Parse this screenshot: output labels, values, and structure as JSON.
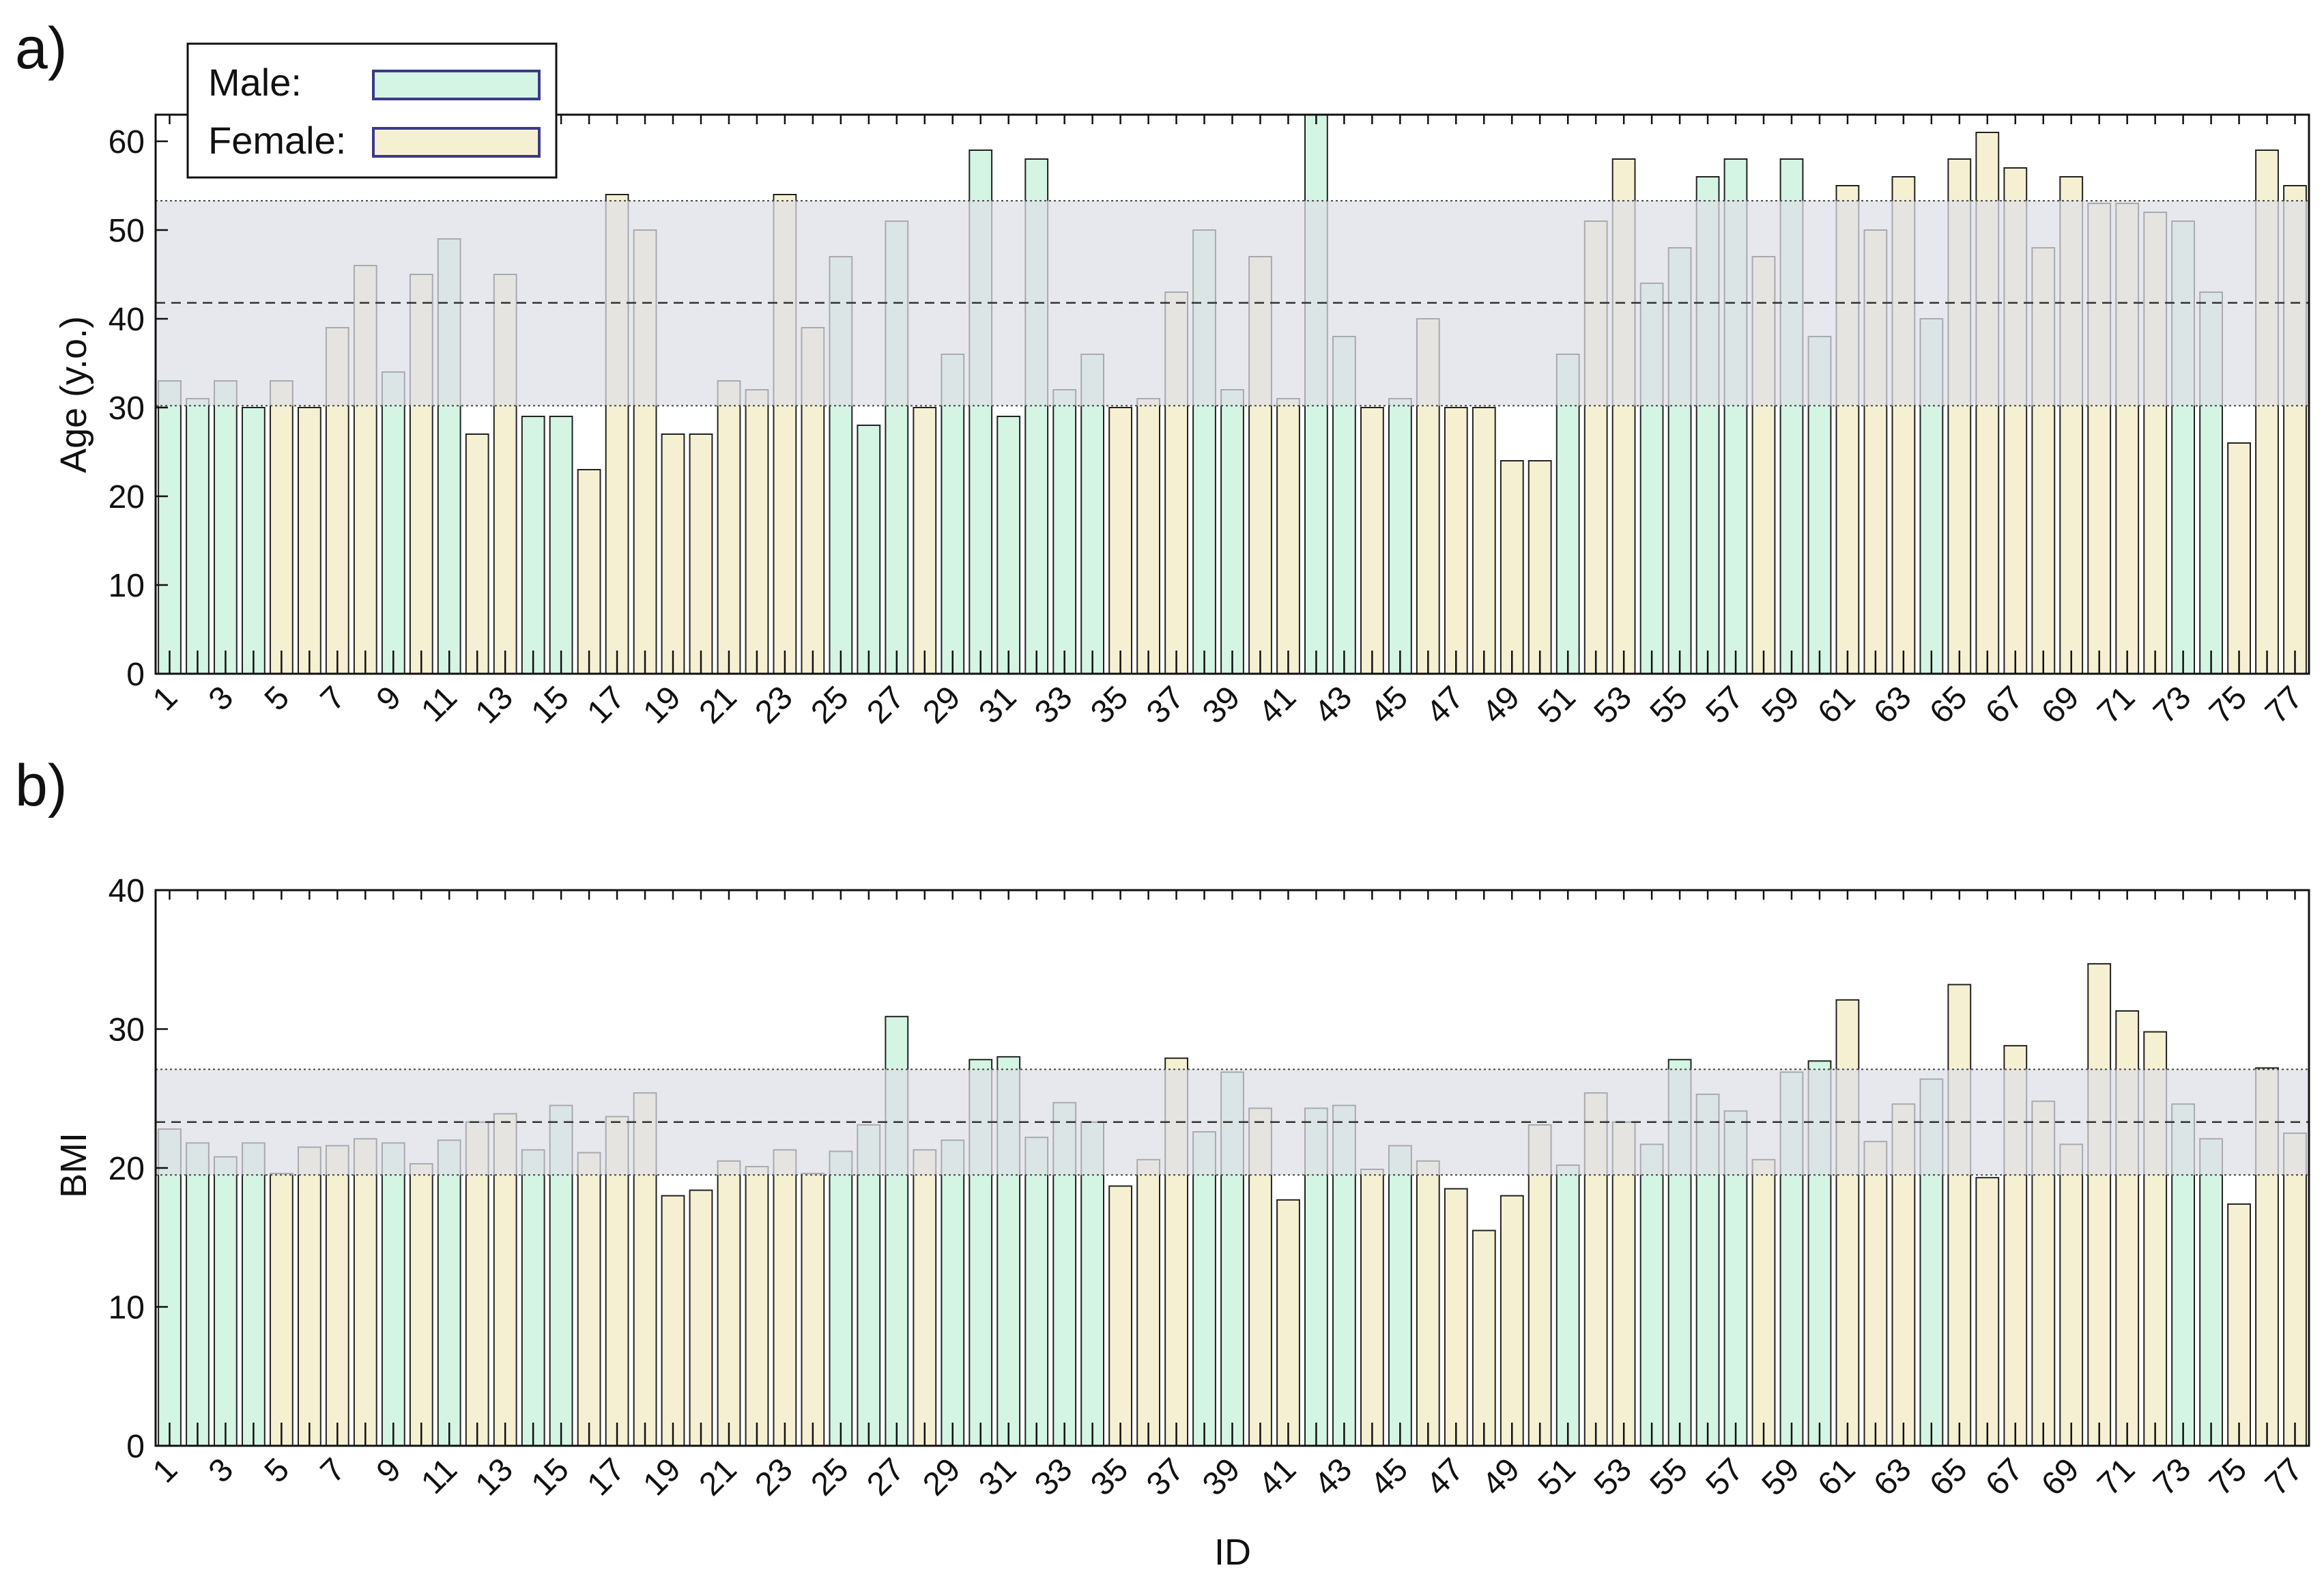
{
  "colors": {
    "male": "#d4f5e4",
    "female": "#f6f0d2",
    "band": "#dedfe6",
    "bar_stroke": "#222222",
    "legend_stroke": "#3a3a8c"
  },
  "legend": {
    "male_label": "Male:",
    "female_label": "Female:"
  },
  "chart_data": [
    {
      "panel": "a)",
      "type": "bar",
      "ylabel": "Age (y.o.)",
      "xlabel": "",
      "ylim": [
        0,
        63
      ],
      "yticks": [
        0,
        10,
        20,
        30,
        40,
        50,
        60
      ],
      "xtick_labels": [
        "1",
        "3",
        "5",
        "7",
        "9",
        "11",
        "13",
        "15",
        "17",
        "19",
        "21",
        "23",
        "25",
        "27",
        "29",
        "31",
        "33",
        "35",
        "37",
        "39",
        "41",
        "43",
        "45",
        "47",
        "49",
        "51",
        "53",
        "55",
        "57",
        "59",
        "61",
        "63",
        "65",
        "67",
        "69",
        "71",
        "73",
        "75",
        "77"
      ],
      "mean": 41.8,
      "band": [
        30.2,
        53.3
      ],
      "ids": [
        1,
        2,
        3,
        4,
        5,
        6,
        7,
        8,
        9,
        10,
        11,
        12,
        13,
        14,
        15,
        16,
        17,
        18,
        19,
        20,
        21,
        22,
        23,
        24,
        25,
        26,
        27,
        28,
        29,
        30,
        31,
        32,
        33,
        34,
        35,
        36,
        37,
        38,
        39,
        40,
        41,
        42,
        43,
        44,
        45,
        46,
        47,
        48,
        49,
        50,
        51,
        52,
        53,
        54,
        55,
        56,
        57,
        58,
        59,
        60,
        61,
        62,
        63,
        64,
        65,
        66,
        67,
        68,
        69,
        70,
        71,
        72,
        73,
        74,
        75,
        76,
        77
      ],
      "sex": [
        "M",
        "M",
        "M",
        "M",
        "F",
        "F",
        "F",
        "F",
        "M",
        "F",
        "M",
        "F",
        "F",
        "M",
        "M",
        "F",
        "F",
        "F",
        "F",
        "F",
        "F",
        "F",
        "F",
        "F",
        "M",
        "M",
        "M",
        "F",
        "M",
        "M",
        "M",
        "M",
        "M",
        "M",
        "F",
        "F",
        "F",
        "M",
        "M",
        "F",
        "F",
        "M",
        "M",
        "F",
        "M",
        "F",
        "F",
        "F",
        "F",
        "F",
        "M",
        "F",
        "F",
        "M",
        "M",
        "M",
        "M",
        "F",
        "M",
        "M",
        "F",
        "F",
        "F",
        "M",
        "F",
        "F",
        "F",
        "F",
        "F",
        "F",
        "F",
        "F",
        "M",
        "M",
        "F",
        "F",
        "F"
      ],
      "values": [
        33,
        31,
        33,
        30,
        33,
        30,
        39,
        46,
        34,
        45,
        49,
        27,
        45,
        29,
        29,
        23,
        54,
        50,
        27,
        27,
        33,
        32,
        54,
        39,
        47,
        28,
        51,
        30,
        36,
        59,
        29,
        58,
        32,
        36,
        30,
        31,
        43,
        50,
        32,
        47,
        31,
        63,
        38,
        30,
        31,
        40,
        30,
        30,
        24,
        24,
        36,
        51,
        58,
        44,
        48,
        56,
        58,
        47,
        58,
        38,
        55,
        50,
        56,
        40,
        58,
        61,
        57,
        48,
        56,
        53,
        53,
        52,
        51,
        43,
        26,
        59,
        55
      ]
    },
    {
      "panel": "b)",
      "type": "bar",
      "ylabel": "BMI",
      "xlabel": "ID",
      "ylim": [
        0,
        40
      ],
      "yticks": [
        0,
        10,
        20,
        30,
        40
      ],
      "xtick_labels": [
        "1",
        "3",
        "5",
        "7",
        "9",
        "11",
        "13",
        "15",
        "17",
        "19",
        "21",
        "23",
        "25",
        "27",
        "29",
        "31",
        "33",
        "35",
        "37",
        "39",
        "41",
        "43",
        "45",
        "47",
        "49",
        "51",
        "53",
        "55",
        "57",
        "59",
        "61",
        "63",
        "65",
        "67",
        "69",
        "71",
        "73",
        "75",
        "77"
      ],
      "mean": 23.3,
      "band": [
        19.5,
        27.1
      ],
      "ids": [
        1,
        2,
        3,
        4,
        5,
        6,
        7,
        8,
        9,
        10,
        11,
        12,
        13,
        14,
        15,
        16,
        17,
        18,
        19,
        20,
        21,
        22,
        23,
        24,
        25,
        26,
        27,
        28,
        29,
        30,
        31,
        32,
        33,
        34,
        35,
        36,
        37,
        38,
        39,
        40,
        41,
        42,
        43,
        44,
        45,
        46,
        47,
        48,
        49,
        50,
        51,
        52,
        53,
        54,
        55,
        56,
        57,
        58,
        59,
        60,
        61,
        62,
        63,
        64,
        65,
        66,
        67,
        68,
        69,
        70,
        71,
        72,
        73,
        74,
        75,
        76,
        77
      ],
      "sex": [
        "M",
        "M",
        "M",
        "M",
        "F",
        "F",
        "F",
        "F",
        "M",
        "F",
        "M",
        "F",
        "F",
        "M",
        "M",
        "F",
        "F",
        "F",
        "F",
        "F",
        "F",
        "F",
        "F",
        "F",
        "M",
        "M",
        "M",
        "F",
        "M",
        "M",
        "M",
        "M",
        "M",
        "M",
        "F",
        "F",
        "F",
        "M",
        "M",
        "F",
        "F",
        "M",
        "M",
        "F",
        "M",
        "F",
        "F",
        "F",
        "F",
        "F",
        "M",
        "F",
        "F",
        "M",
        "M",
        "M",
        "M",
        "F",
        "M",
        "M",
        "F",
        "F",
        "F",
        "M",
        "F",
        "F",
        "F",
        "F",
        "F",
        "F",
        "F",
        "F",
        "M",
        "M",
        "F",
        "F",
        "F"
      ],
      "values": [
        22.8,
        21.8,
        20.8,
        21.8,
        19.6,
        21.5,
        21.6,
        22.1,
        21.8,
        20.3,
        22.0,
        23.3,
        23.9,
        21.3,
        24.5,
        21.1,
        23.7,
        25.4,
        18.0,
        18.4,
        20.5,
        20.1,
        21.3,
        19.6,
        21.2,
        23.1,
        30.9,
        21.3,
        22.0,
        27.8,
        28.0,
        22.2,
        24.7,
        23.3,
        18.7,
        20.6,
        27.9,
        22.6,
        26.9,
        24.3,
        17.7,
        24.3,
        24.5,
        19.9,
        21.6,
        20.5,
        18.5,
        15.5,
        18.0,
        23.1,
        20.2,
        25.4,
        23.3,
        21.7,
        27.8,
        25.3,
        24.1,
        20.6,
        26.9,
        27.7,
        32.1,
        21.9,
        24.6,
        26.4,
        33.2,
        19.3,
        28.8,
        24.8,
        21.7,
        34.7,
        31.3,
        29.8,
        24.6,
        22.1,
        17.4,
        27.2,
        22.5
      ]
    }
  ]
}
